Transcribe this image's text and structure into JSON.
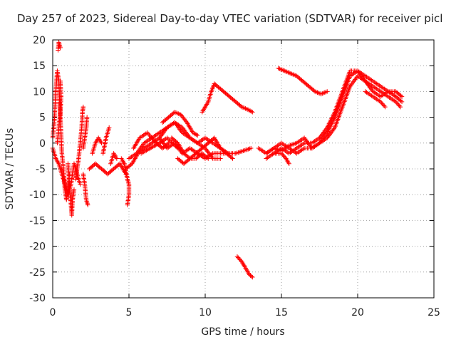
{
  "chart_data": {
    "type": "scatter",
    "title": "Day 257 of 2023, Sidereal Day-to-day VTEC variation (SDTVAR) for receiver picl",
    "xlabel": "GPS time / hours",
    "ylabel": "SDTVAR / TECUs",
    "xlim": [
      0,
      25
    ],
    "ylim": [
      -30,
      20
    ],
    "xticks": [
      0,
      5,
      10,
      15,
      20,
      25
    ],
    "yticks": [
      -30,
      -25,
      -20,
      -15,
      -10,
      -5,
      0,
      5,
      10,
      15,
      20
    ],
    "grid": true,
    "marker": "+",
    "series": [
      {
        "name": "SDTVAR",
        "color": "#ff0000",
        "segments": [
          [
            [
              0.0,
              1
            ],
            [
              0.1,
              4
            ],
            [
              0.2,
              10
            ],
            [
              0.3,
              14
            ],
            [
              0.4,
              12
            ],
            [
              0.5,
              5
            ],
            [
              0.6,
              -2
            ],
            [
              0.7,
              -5
            ],
            [
              0.8,
              -9
            ],
            [
              0.9,
              -11
            ],
            [
              1.0,
              -9
            ],
            [
              1.1,
              -6
            ]
          ],
          [
            [
              0.0,
              -1
            ],
            [
              0.2,
              -3
            ],
            [
              0.4,
              -4
            ],
            [
              0.6,
              -6
            ],
            [
              0.8,
              -8
            ],
            [
              1.0,
              -10
            ],
            [
              1.2,
              -8
            ],
            [
              1.4,
              -4
            ],
            [
              1.6,
              -6
            ],
            [
              1.8,
              -8
            ]
          ],
          [
            [
              0.3,
              0
            ],
            [
              0.4,
              3
            ],
            [
              0.5,
              6
            ],
            [
              0.55,
              9
            ],
            [
              0.5,
              12
            ]
          ],
          [
            [
              0.35,
              18
            ],
            [
              0.4,
              19.5
            ],
            [
              0.45,
              19
            ],
            [
              0.5,
              18.5
            ]
          ],
          [
            [
              1.0,
              -4
            ],
            [
              1.1,
              -8
            ],
            [
              1.2,
              -12
            ],
            [
              1.25,
              -14
            ],
            [
              1.3,
              -11
            ],
            [
              1.4,
              -9
            ]
          ],
          [
            [
              1.5,
              -7
            ],
            [
              1.6,
              -5
            ],
            [
              1.7,
              -3
            ],
            [
              1.8,
              0
            ],
            [
              1.9,
              3
            ],
            [
              1.95,
              6
            ],
            [
              2.0,
              7
            ]
          ],
          [
            [
              2.0,
              -6
            ],
            [
              2.1,
              -8
            ],
            [
              2.2,
              -11
            ],
            [
              2.3,
              -12
            ]
          ],
          [
            [
              2.0,
              -1
            ],
            [
              2.1,
              1
            ],
            [
              2.2,
              3
            ],
            [
              2.25,
              5
            ]
          ],
          [
            [
              2.4,
              -5
            ],
            [
              2.8,
              -4
            ],
            [
              3.2,
              -5
            ],
            [
              3.6,
              -6
            ],
            [
              4.0,
              -5
            ],
            [
              4.4,
              -4
            ],
            [
              4.8,
              -6
            ]
          ],
          [
            [
              2.6,
              -2
            ],
            [
              2.8,
              0
            ],
            [
              3.0,
              1
            ],
            [
              3.2,
              0
            ]
          ],
          [
            [
              3.3,
              -2
            ],
            [
              3.5,
              1
            ],
            [
              3.7,
              3
            ]
          ],
          [
            [
              3.8,
              -4
            ],
            [
              4.0,
              -2
            ],
            [
              4.2,
              -3
            ]
          ],
          [
            [
              4.5,
              -3
            ],
            [
              4.7,
              -4
            ],
            [
              4.9,
              -7
            ],
            [
              5.0,
              -8
            ],
            [
              5.0,
              -10
            ],
            [
              4.9,
              -12
            ]
          ],
          [
            [
              4.8,
              -5
            ],
            [
              5.2,
              -4
            ],
            [
              5.6,
              -2
            ],
            [
              6.0,
              -1
            ],
            [
              6.5,
              0
            ],
            [
              7.0,
              1
            ],
            [
              7.5,
              -1
            ],
            [
              8.0,
              0
            ],
            [
              8.5,
              -2
            ],
            [
              9.0,
              -1
            ],
            [
              9.5,
              -2
            ],
            [
              10.0,
              -3
            ],
            [
              10.5,
              -2
            ],
            [
              11.0,
              -2
            ],
            [
              11.5,
              -2
            ],
            [
              12.0,
              -2
            ],
            [
              12.5,
              -1.5
            ],
            [
              13.0,
              -1
            ]
          ],
          [
            [
              5.0,
              -3
            ],
            [
              5.5,
              -2
            ],
            [
              6.0,
              0
            ],
            [
              6.5,
              1
            ],
            [
              7.0,
              2
            ],
            [
              7.5,
              3
            ],
            [
              8.0,
              4
            ],
            [
              8.5,
              2
            ],
            [
              9.0,
              1
            ],
            [
              9.5,
              0
            ],
            [
              10.0,
              -1
            ],
            [
              10.5,
              -3
            ],
            [
              11.0,
              -3
            ]
          ],
          [
            [
              5.3,
              -1
            ],
            [
              5.7,
              1
            ],
            [
              6.2,
              2
            ],
            [
              6.8,
              0
            ],
            [
              7.2,
              -1
            ],
            [
              7.6,
              0
            ]
          ],
          [
            [
              5.8,
              -2
            ],
            [
              6.4,
              -1
            ],
            [
              7.0,
              0
            ],
            [
              7.5,
              1
            ],
            [
              8.2,
              -1
            ]
          ],
          [
            [
              7.0,
              1
            ],
            [
              7.5,
              3
            ],
            [
              8.0,
              4
            ],
            [
              8.5,
              3
            ],
            [
              9.0,
              1
            ],
            [
              9.5,
              0
            ],
            [
              10.0,
              1
            ],
            [
              10.5,
              0
            ],
            [
              11.0,
              -1
            ],
            [
              11.5,
              -2
            ]
          ],
          [
            [
              7.2,
              4
            ],
            [
              7.6,
              5
            ],
            [
              8.0,
              6
            ],
            [
              8.4,
              5.5
            ],
            [
              8.8,
              4
            ],
            [
              9.2,
              2
            ],
            [
              9.5,
              1.5
            ]
          ],
          [
            [
              7.8,
              1
            ],
            [
              8.2,
              0
            ],
            [
              8.6,
              -2
            ],
            [
              9.0,
              -3
            ],
            [
              9.4,
              -3
            ],
            [
              9.8,
              -2
            ],
            [
              10.2,
              -3
            ]
          ],
          [
            [
              8.2,
              -3
            ],
            [
              8.6,
              -4
            ],
            [
              9.0,
              -3
            ],
            [
              9.4,
              -2
            ],
            [
              9.8,
              -1
            ],
            [
              10.2,
              0
            ],
            [
              10.6,
              1
            ],
            [
              11.0,
              -1
            ],
            [
              11.4,
              -2
            ],
            [
              11.8,
              -3
            ]
          ],
          [
            [
              9.8,
              6
            ],
            [
              10.0,
              7
            ],
            [
              10.2,
              8
            ],
            [
              10.4,
              10
            ],
            [
              10.6,
              11.5
            ],
            [
              10.8,
              11
            ],
            [
              11.2,
              10
            ],
            [
              11.6,
              9
            ],
            [
              12.0,
              8
            ],
            [
              12.4,
              7
            ],
            [
              12.8,
              6.5
            ],
            [
              13.1,
              6
            ]
          ],
          [
            [
              12.1,
              -22
            ],
            [
              12.4,
              -23
            ],
            [
              12.7,
              -24.5
            ],
            [
              12.9,
              -25.5
            ],
            [
              13.1,
              -26
            ]
          ],
          [
            [
              13.5,
              -1
            ],
            [
              14.0,
              -2
            ],
            [
              14.5,
              -1
            ],
            [
              15.0,
              0
            ],
            [
              15.5,
              -1
            ],
            [
              16.0,
              -2
            ],
            [
              16.5,
              -1
            ],
            [
              17.0,
              -1
            ],
            [
              17.5,
              0
            ],
            [
              18.0,
              1
            ],
            [
              18.5,
              3
            ],
            [
              19.0,
              7
            ],
            [
              19.5,
              11
            ],
            [
              20.0,
              13
            ],
            [
              20.5,
              12
            ],
            [
              21.0,
              11
            ],
            [
              21.5,
              10
            ],
            [
              22.0,
              9
            ],
            [
              22.5,
              8
            ],
            [
              22.8,
              7
            ]
          ],
          [
            [
              14.0,
              -2
            ],
            [
              14.5,
              -1
            ],
            [
              15.0,
              -1.5
            ],
            [
              15.5,
              -0.5
            ],
            [
              16.0,
              0
            ],
            [
              16.5,
              1
            ],
            [
              17.0,
              -1
            ],
            [
              17.5,
              0
            ],
            [
              18.0,
              2
            ],
            [
              18.5,
              5
            ],
            [
              19.0,
              9
            ],
            [
              19.5,
              13
            ],
            [
              20.0,
              14
            ],
            [
              20.5,
              13
            ],
            [
              21.0,
              12
            ],
            [
              21.5,
              11
            ],
            [
              22.0,
              10
            ],
            [
              22.5,
              9
            ],
            [
              22.9,
              8
            ]
          ],
          [
            [
              14.5,
              -2
            ],
            [
              15.0,
              -1
            ],
            [
              15.5,
              -2
            ],
            [
              16.0,
              -1
            ],
            [
              16.5,
              0
            ],
            [
              17.0,
              0
            ],
            [
              17.5,
              1
            ],
            [
              18.0,
              3
            ],
            [
              18.5,
              6
            ],
            [
              19.0,
              10
            ],
            [
              19.5,
              14
            ],
            [
              20.0,
              14
            ],
            [
              20.5,
              12
            ],
            [
              21.0,
              10
            ],
            [
              21.5,
              9
            ],
            [
              22.0,
              10
            ],
            [
              22.5,
              10
            ],
            [
              22.9,
              9
            ]
          ],
          [
            [
              14.0,
              -3
            ],
            [
              14.5,
              -2
            ],
            [
              15.0,
              -2
            ],
            [
              15.3,
              -3
            ],
            [
              15.5,
              -4
            ]
          ],
          [
            [
              14.8,
              14.5
            ],
            [
              15.2,
              14
            ],
            [
              15.6,
              13.5
            ],
            [
              16.0,
              13
            ],
            [
              16.4,
              12
            ],
            [
              16.8,
              11
            ],
            [
              17.2,
              10
            ],
            [
              17.6,
              9.5
            ],
            [
              18.0,
              10
            ]
          ],
          [
            [
              20.5,
              10
            ],
            [
              21.0,
              9
            ],
            [
              21.5,
              8
            ],
            [
              21.8,
              7
            ]
          ]
        ]
      }
    ]
  }
}
